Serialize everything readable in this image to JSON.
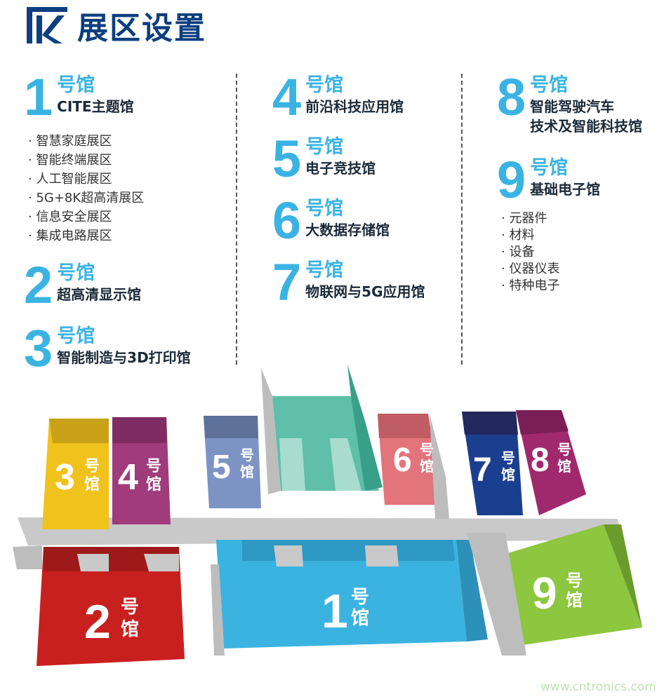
{
  "title": "展区设置",
  "hao": "号馆",
  "halls": [
    {
      "number": "1",
      "name": "CITE主题馆",
      "sub": [
        "智慧家庭展区",
        "智能终端展区",
        "人工智能展区",
        "5G+8K超高清展区",
        "信息安全展区",
        "集成电路展区"
      ]
    },
    {
      "number": "2",
      "name": "超高清显示馆"
    },
    {
      "number": "3",
      "name": "智能制造与3D打印馆"
    },
    {
      "number": "4",
      "name": "前沿科技应用馆"
    },
    {
      "number": "5",
      "name": "电子竞技馆"
    },
    {
      "number": "6",
      "name": "大数据存储馆"
    },
    {
      "number": "7",
      "name": "物联网与5G应用馆"
    },
    {
      "number": "8",
      "name": "智能驾驶汽车",
      "name2": "技术及智能科技馆"
    },
    {
      "number": "9",
      "name": "基础电子馆",
      "sub": [
        "元器件",
        "材料",
        "设备",
        "仪器仪表",
        "特种电子"
      ]
    }
  ],
  "map": {
    "hao_top": "号",
    "hao_bottom": "馆"
  },
  "colors": {
    "title": "#0d3f7f",
    "accent": "#3ab3e3",
    "hall1": "#3bb3e0",
    "hall2": "#c8201f",
    "hall3": "#f0c21c",
    "hall4": "#a03b7c",
    "hall5": "#7c93c4",
    "hall6": "#e3747c",
    "hall7": "#1b3f8f",
    "hall8": "#a0296e",
    "hall9": "#8dc63f",
    "teal": "#5fbfa8"
  },
  "watermark": "www.cntronics.com"
}
